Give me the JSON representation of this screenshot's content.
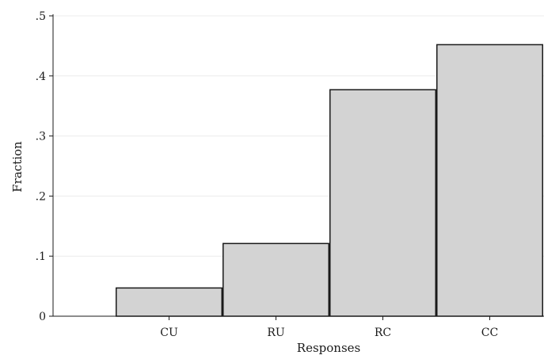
{
  "chart_data": {
    "type": "bar",
    "categories": [
      "CU",
      "RU",
      "RC",
      "CC"
    ],
    "values": [
      0.047,
      0.121,
      0.377,
      0.452
    ],
    "xlabel": "Responses",
    "ylabel": "Fraction",
    "ylim": [
      0,
      0.5
    ],
    "yticks": [
      0,
      0.1,
      0.2,
      0.3,
      0.4,
      0.5
    ],
    "ytick_labels": [
      "0",
      ".1",
      ".2",
      ".3",
      ".4",
      ".5"
    ],
    "grid": true,
    "bar_color": "#d3d3d3",
    "bar_edge_color": "#1a1a1a",
    "grid_color": "#ececec"
  }
}
